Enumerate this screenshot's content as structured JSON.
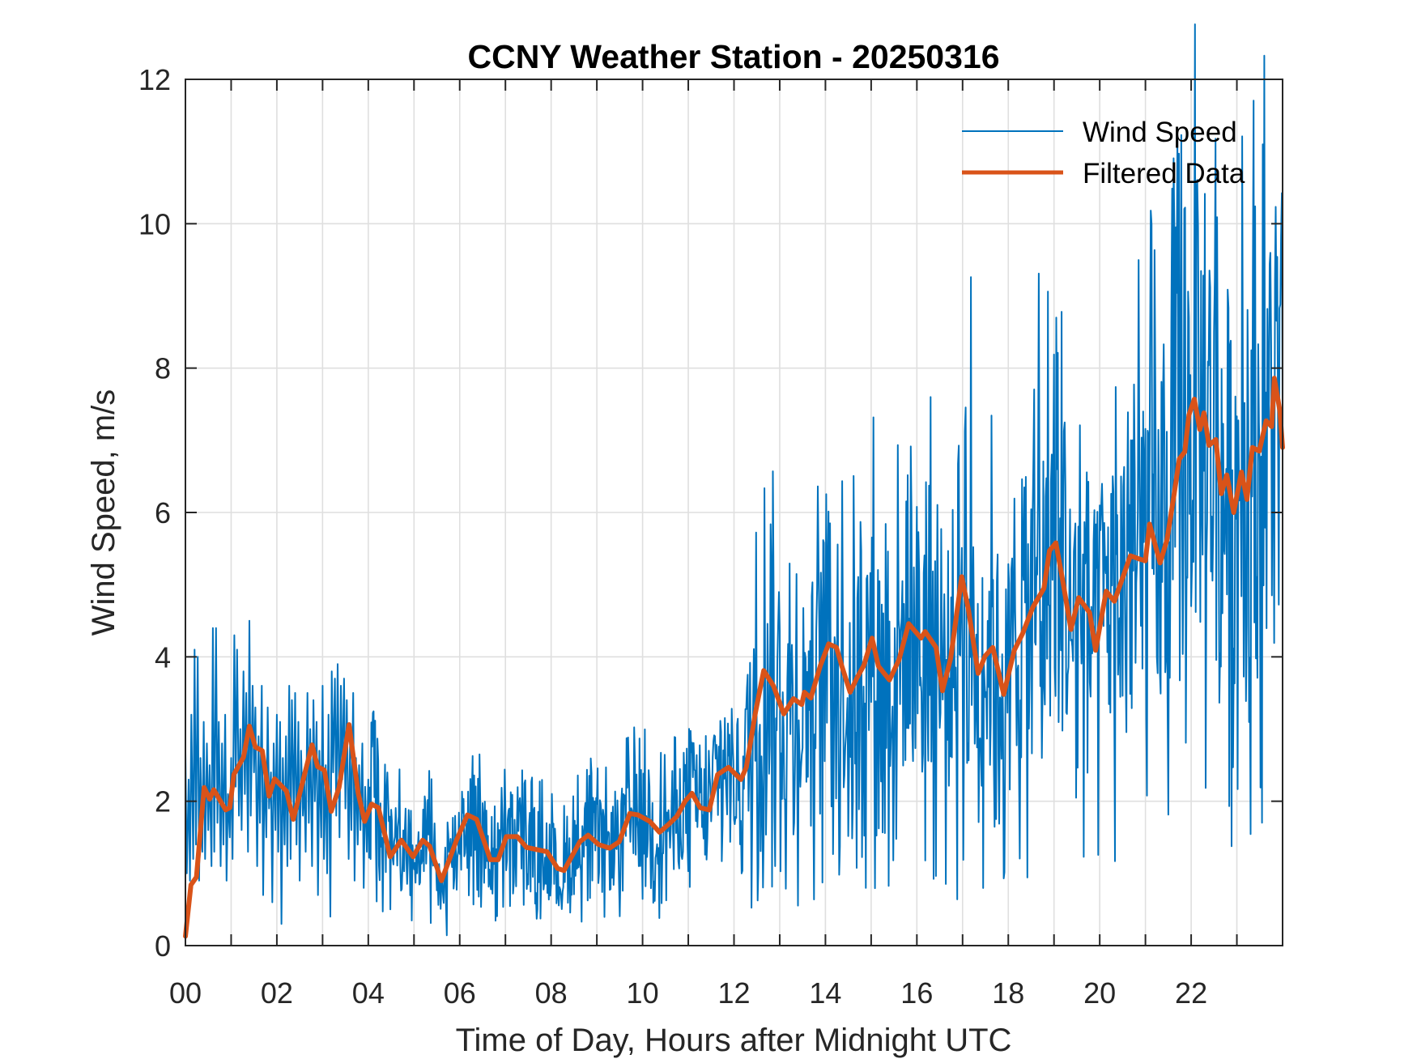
{
  "chart_data": {
    "type": "line",
    "title": "CCNY Weather Station - 20250316",
    "xlabel": "Time of Day, Hours after Midnight UTC",
    "ylabel": "Wind Speed, m/s",
    "xlim": [
      0,
      24
    ],
    "ylim": [
      0,
      12
    ],
    "grid": true,
    "legend_position": "top-right",
    "x_ticks": [
      0,
      2,
      4,
      6,
      8,
      10,
      12,
      14,
      16,
      18,
      20,
      22
    ],
    "x_tick_labels": [
      "00",
      "02",
      "04",
      "06",
      "08",
      "10",
      "12",
      "14",
      "16",
      "18",
      "20",
      "22"
    ],
    "x_minor_grid": [
      1,
      3,
      5,
      7,
      9,
      11,
      13,
      15,
      17,
      19,
      21,
      23
    ],
    "y_ticks": [
      0,
      2,
      4,
      6,
      8,
      10,
      12
    ],
    "y_tick_labels": [
      "0",
      "2",
      "4",
      "6",
      "8",
      "10",
      "12"
    ],
    "series": [
      {
        "name": "Wind Speed",
        "color": "#0072BD",
        "style": "thin",
        "envelope_note": "raw ~1-min samples; values listed at representative points",
        "x": [
          0.0,
          0.03,
          0.07,
          0.1,
          0.13,
          0.17,
          0.2,
          0.23,
          0.27,
          0.3,
          0.33,
          0.37,
          0.4,
          0.43,
          0.47,
          0.5,
          0.53,
          0.57,
          0.6,
          0.63,
          0.67,
          0.7,
          0.73,
          0.77,
          0.8,
          0.83,
          0.87,
          0.9,
          0.93,
          0.97,
          1.0,
          1.03,
          1.07,
          1.1,
          1.13,
          1.17,
          1.2,
          1.23,
          1.27,
          1.3,
          1.33,
          1.37,
          1.4,
          1.43,
          1.47,
          1.5,
          1.53,
          1.57,
          1.6,
          1.63,
          1.67,
          1.7,
          1.73,
          1.77,
          1.8,
          1.83,
          1.87,
          1.9,
          1.93,
          1.97,
          2.0,
          2.03,
          2.07,
          2.1,
          2.13,
          2.17,
          2.2,
          2.23,
          2.27,
          2.3,
          2.33,
          2.37,
          2.4,
          2.43,
          2.47,
          2.5,
          2.53,
          2.57,
          2.6,
          2.63,
          2.67,
          2.7,
          2.73,
          2.77,
          2.8,
          2.83,
          2.87,
          2.9,
          2.93,
          2.97,
          3.0,
          3.03,
          3.07,
          3.1,
          3.13,
          3.17,
          3.2,
          3.23,
          3.27,
          3.3,
          3.33,
          3.37,
          3.4,
          3.43,
          3.47,
          3.5,
          3.53,
          3.57,
          3.6,
          3.63,
          3.67,
          3.7,
          3.73,
          3.77,
          3.8,
          3.83,
          3.87,
          3.9,
          3.93,
          3.97,
          4.0
        ],
        "values": [
          2.7,
          1.0,
          2.3,
          0.9,
          3.2,
          1.2,
          4.1,
          1.4,
          4.0,
          0.9,
          2.6,
          1.3,
          3.1,
          1.2,
          2.8,
          1.6,
          2.5,
          1.1,
          4.4,
          1.3,
          4.4,
          1.7,
          3.1,
          1.1,
          2.8,
          1.4,
          3.2,
          0.9,
          2.1,
          1.5,
          2.6,
          1.2,
          4.3,
          2.2,
          4.1,
          1.8,
          3.0,
          1.6,
          3.8,
          2.1,
          3.5,
          1.3,
          4.5,
          1.8,
          3.6,
          2.4,
          3.3,
          1.1,
          2.9,
          1.7,
          3.6,
          0.7,
          2.5,
          1.5,
          3.3,
          1.9,
          2.4,
          0.6,
          2.8,
          1.6,
          3.2,
          1.3,
          3.1,
          0.3,
          2.6,
          1.4,
          2.9,
          1.1,
          3.6,
          1.2,
          3.4,
          1.8,
          3.5,
          1.4,
          3.1,
          0.9,
          2.7,
          1.8,
          2.3,
          1.3,
          3.5,
          1.7,
          3.0,
          1.1,
          3.4,
          2.0,
          3.1,
          0.7,
          2.7,
          1.5,
          3.6,
          1.2,
          2.5,
          1.0,
          3.2,
          0.4,
          3.8,
          2.4,
          3.7,
          1.8,
          3.9,
          1.5,
          3.6,
          2.3,
          3.7,
          1.9,
          3.4,
          1.2,
          2.8,
          1.6,
          3.5,
          0.9,
          2.6,
          1.4,
          2.5,
          1.6,
          2.8,
          0.8,
          2.2,
          1.3,
          2.3
        ]
      },
      {
        "name": "Filtered Data",
        "color": "#D95319",
        "style": "thick",
        "x": [
          0.0,
          0.12,
          0.24,
          0.41,
          0.53,
          0.62,
          0.88,
          0.97,
          1.06,
          1.27,
          1.4,
          1.53,
          1.68,
          1.83,
          1.95,
          2.21,
          2.36,
          2.6,
          2.77,
          2.89,
          3.04,
          3.19,
          3.36,
          3.58,
          3.78,
          3.92,
          4.07,
          4.22,
          4.48,
          4.72,
          4.98,
          5.19,
          5.34,
          5.6,
          5.93,
          6.17,
          6.37,
          6.67,
          6.84,
          7.02,
          7.26,
          7.46,
          7.91,
          8.14,
          8.28,
          8.63,
          8.81,
          9.04,
          9.28,
          9.49,
          9.72,
          9.9,
          10.16,
          10.37,
          10.57,
          10.75,
          10.93,
          11.08,
          11.26,
          11.46,
          11.64,
          11.88,
          12.15,
          12.27,
          12.47,
          12.65,
          12.86,
          13.09,
          13.3,
          13.48,
          13.54,
          13.68,
          13.89,
          14.07,
          14.24,
          14.36,
          14.54,
          14.69,
          14.84,
          15.02,
          15.16,
          15.4,
          15.61,
          15.82,
          16.09,
          16.18,
          16.42,
          16.56,
          16.74,
          16.98,
          17.13,
          17.34,
          17.49,
          17.66,
          17.9,
          18.13,
          18.31,
          18.54,
          18.78,
          18.9,
          19.04,
          19.19,
          19.37,
          19.54,
          19.78,
          19.91,
          20.14,
          20.32,
          20.46,
          20.67,
          20.85,
          21.0,
          21.09,
          21.32,
          21.47,
          21.62,
          21.74,
          21.86,
          21.95,
          22.07,
          22.19,
          22.28,
          22.39,
          22.54,
          22.66,
          22.78,
          22.93,
          23.1,
          23.22,
          23.34,
          23.49,
          23.64,
          23.76,
          23.82,
          23.94,
          24.0
        ],
        "values": [
          0.13,
          0.84,
          0.95,
          2.19,
          2.03,
          2.16,
          1.88,
          1.91,
          2.37,
          2.61,
          3.04,
          2.75,
          2.7,
          2.07,
          2.31,
          2.14,
          1.75,
          2.36,
          2.78,
          2.48,
          2.43,
          1.86,
          2.19,
          3.06,
          2.11,
          1.72,
          1.96,
          1.91,
          1.23,
          1.46,
          1.23,
          1.46,
          1.38,
          0.9,
          1.46,
          1.81,
          1.75,
          1.19,
          1.19,
          1.51,
          1.51,
          1.36,
          1.3,
          1.07,
          1.04,
          1.44,
          1.53,
          1.4,
          1.35,
          1.44,
          1.83,
          1.81,
          1.72,
          1.57,
          1.68,
          1.79,
          2.0,
          2.11,
          1.91,
          1.88,
          2.37,
          2.47,
          2.3,
          2.47,
          3.23,
          3.81,
          3.6,
          3.21,
          3.42,
          3.34,
          3.51,
          3.43,
          3.88,
          4.18,
          4.13,
          3.87,
          3.51,
          3.71,
          3.88,
          4.26,
          3.87,
          3.68,
          3.96,
          4.46,
          4.26,
          4.35,
          4.13,
          3.53,
          3.98,
          5.11,
          4.65,
          3.77,
          4.01,
          4.13,
          3.48,
          4.09,
          4.32,
          4.69,
          4.95,
          5.47,
          5.58,
          5.06,
          4.38,
          4.82,
          4.61,
          4.09,
          4.91,
          4.77,
          5.02,
          5.4,
          5.36,
          5.33,
          5.84,
          5.3,
          5.62,
          6.22,
          6.74,
          6.84,
          7.35,
          7.57,
          7.15,
          7.38,
          6.93,
          7.01,
          6.26,
          6.52,
          6.0,
          6.56,
          6.18,
          6.9,
          6.85,
          7.27,
          7.19,
          7.86,
          7.41,
          6.9
        ]
      }
    ],
    "wind_speed_notable_points": [
      {
        "x": 17.19,
        "y": 9.26
      },
      {
        "x": 18.66,
        "y": 9.31
      },
      {
        "x": 21.73,
        "y": 10.97
      },
      {
        "x": 22.56,
        "y": 10.09
      },
      {
        "x": 23.12,
        "y": 11.21
      },
      {
        "x": 23.56,
        "y": 11.1
      },
      {
        "x": 16.88,
        "y": 0.64
      },
      {
        "x": 14.32,
        "y": 1.38
      }
    ]
  }
}
